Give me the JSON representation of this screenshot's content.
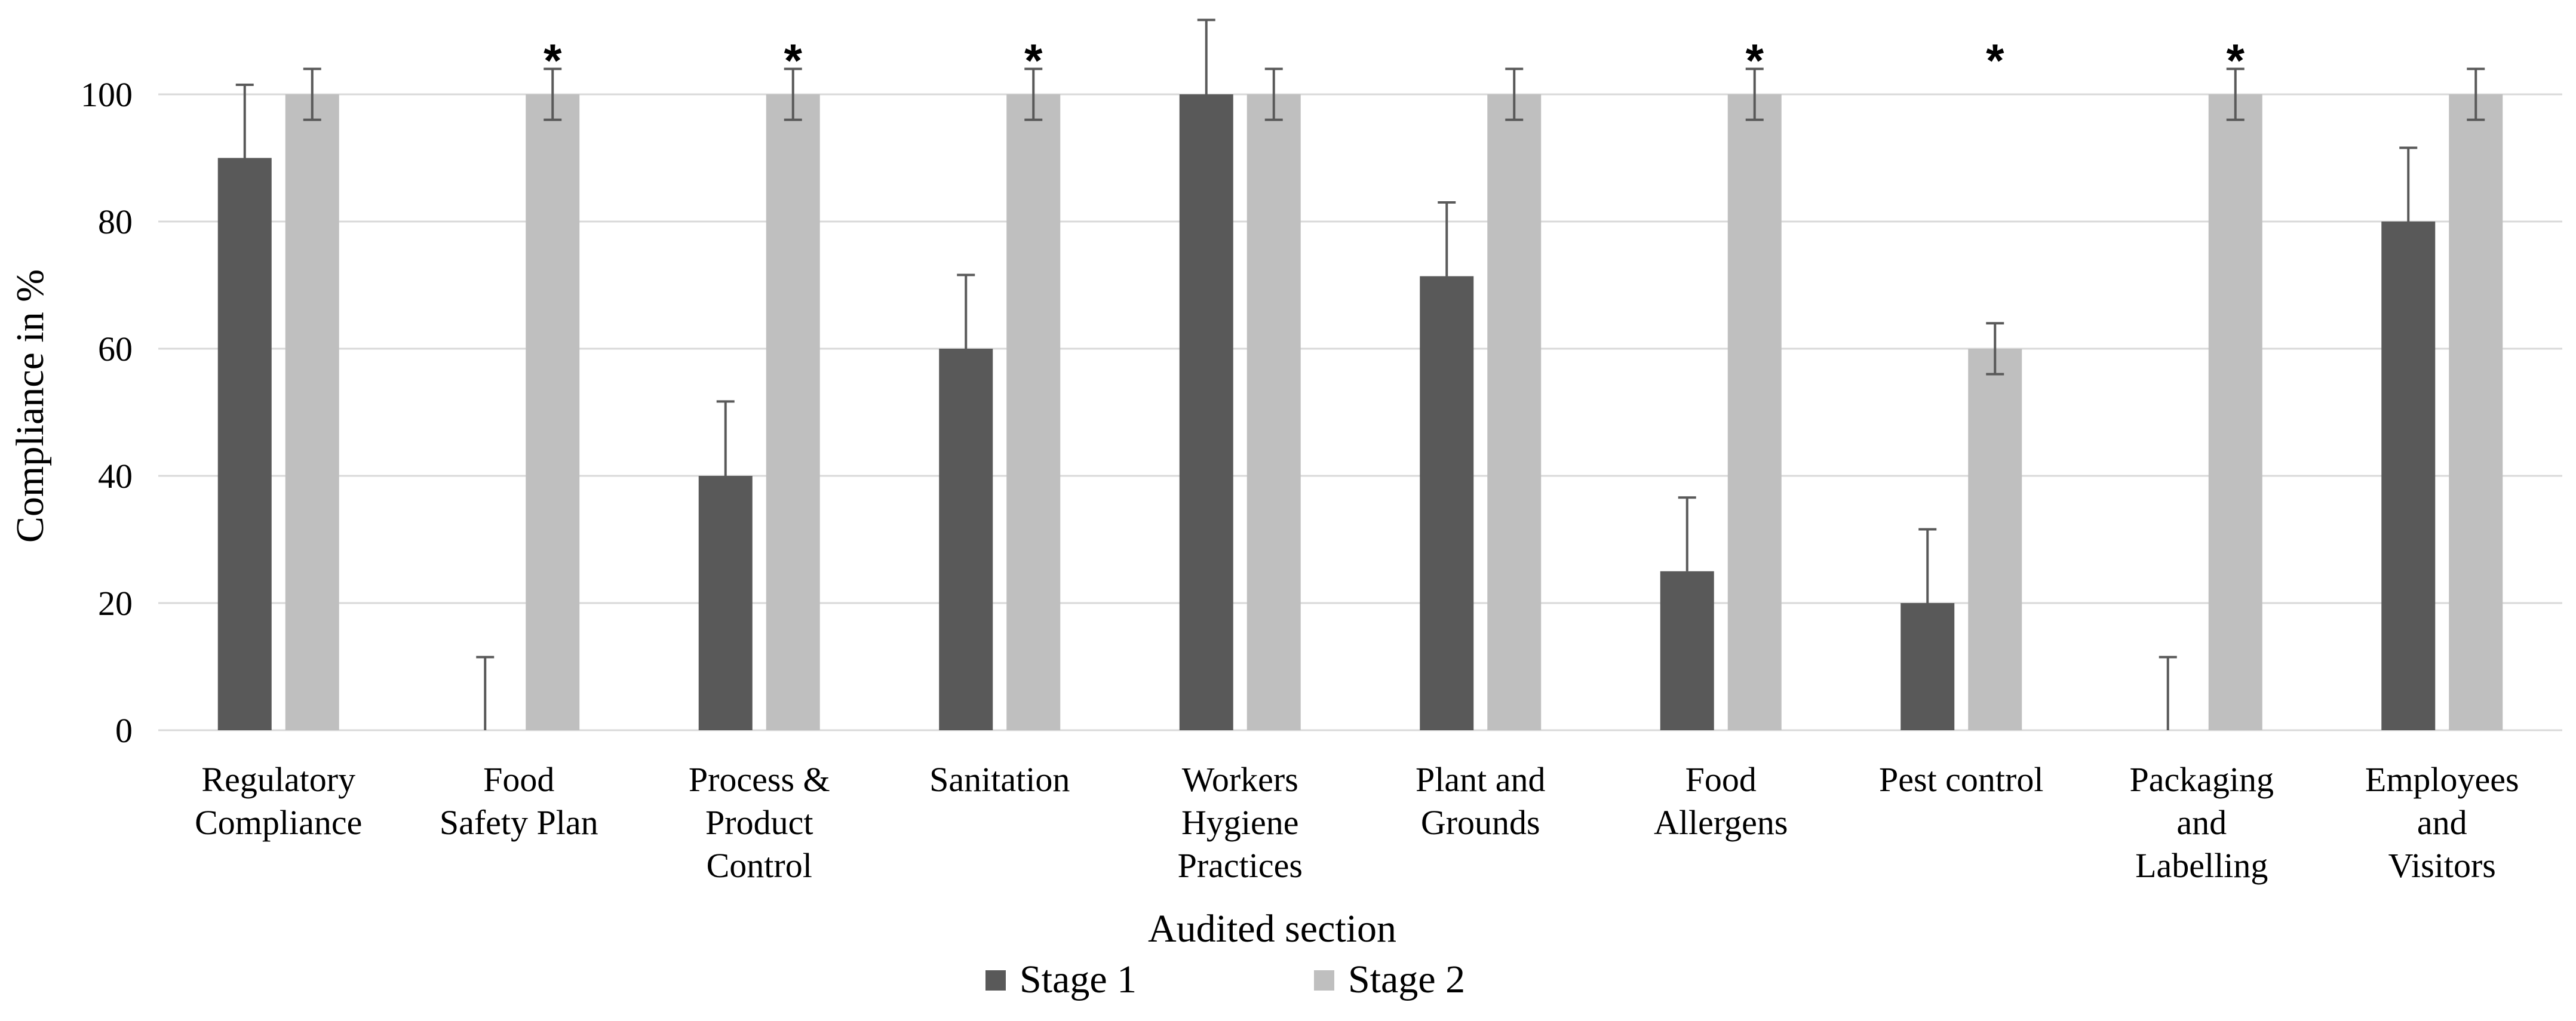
{
  "chart_data": {
    "type": "bar",
    "title": "",
    "xlabel": "Audited section",
    "ylabel": "Compliance in %",
    "ylim": [
      0,
      110
    ],
    "yticks": [
      0,
      20,
      40,
      60,
      80,
      100
    ],
    "grid": true,
    "legend_position": "bottom",
    "categories": [
      [
        "Regulatory",
        "Compliance"
      ],
      [
        "Food",
        "Safety Plan"
      ],
      [
        "Process &",
        "Product",
        "Control"
      ],
      [
        "Sanitation"
      ],
      [
        "Workers",
        "Hygiene",
        "Practices"
      ],
      [
        "Plant and",
        "Grounds"
      ],
      [
        "Food",
        "Allergens"
      ],
      [
        "Pest control"
      ],
      [
        "Packaging",
        "and",
        "Labelling"
      ],
      [
        "Employees",
        "and",
        "Visitors"
      ]
    ],
    "series": [
      {
        "name": "Stage 1",
        "color": "#595959",
        "values": [
          90,
          0,
          40,
          60,
          100,
          71.4,
          25,
          20,
          0,
          80
        ],
        "error_upper": [
          101.5,
          11.5,
          51.7,
          71.6,
          111.7,
          83,
          36.6,
          31.6,
          11.5,
          91.6
        ]
      },
      {
        "name": "Stage 2",
        "color": "#bfbfbf",
        "values": [
          100,
          100,
          100,
          100,
          100,
          100,
          100,
          60,
          100,
          100
        ],
        "error_upper": [
          104,
          104,
          104,
          104,
          104,
          104,
          104,
          64,
          104,
          104
        ],
        "error_lower": [
          96,
          96,
          96,
          96,
          96,
          96,
          96,
          56,
          96,
          96
        ]
      }
    ],
    "significance_marks": [
      {
        "category_index": 1,
        "series_index": 1,
        "label": "*"
      },
      {
        "category_index": 2,
        "series_index": 1,
        "label": "*"
      },
      {
        "category_index": 3,
        "series_index": 1,
        "label": "*"
      },
      {
        "category_index": 6,
        "series_index": 1,
        "label": "*"
      },
      {
        "category_index": 7,
        "series_index": 1,
        "label": "*"
      },
      {
        "category_index": 8,
        "series_index": 1,
        "label": "*"
      }
    ]
  }
}
